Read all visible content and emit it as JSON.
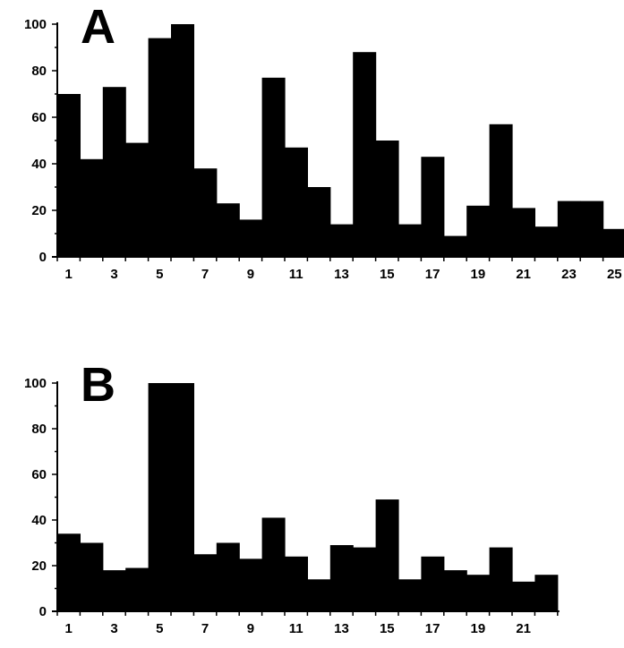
{
  "chart_data": [
    {
      "type": "bar",
      "panel_label": "A",
      "x": [
        1,
        2,
        3,
        4,
        5,
        6,
        7,
        8,
        9,
        10,
        11,
        12,
        13,
        14,
        15,
        16,
        17,
        18,
        19,
        20,
        21,
        22,
        23,
        24,
        25
      ],
      "values": [
        70,
        42,
        73,
        49,
        94,
        100,
        38,
        23,
        16,
        77,
        47,
        30,
        14,
        88,
        50,
        14,
        43,
        9,
        22,
        57,
        21,
        13,
        24,
        24,
        12
      ],
      "x_tick_labels": [
        "1",
        "3",
        "5",
        "7",
        "9",
        "11",
        "13",
        "15",
        "17",
        "19",
        "21",
        "23",
        "25"
      ],
      "y_ticks": [
        0,
        20,
        40,
        60,
        80,
        100
      ],
      "y_tick_labels": [
        "0",
        "20",
        "40",
        "60",
        "80",
        "100"
      ],
      "ylim": [
        0,
        100
      ],
      "grid": false,
      "color": "#000000"
    },
    {
      "type": "bar",
      "panel_label": "B",
      "x": [
        1,
        2,
        3,
        4,
        5,
        6,
        7,
        8,
        9,
        10,
        11,
        12,
        13,
        14,
        15,
        16,
        17,
        18,
        19,
        20,
        21,
        22
      ],
      "values": [
        34,
        30,
        18,
        19,
        100,
        100,
        25,
        30,
        23,
        41,
        24,
        14,
        29,
        28,
        49,
        14,
        24,
        18,
        16,
        28,
        13,
        16
      ],
      "x_tick_labels": [
        "1",
        "3",
        "5",
        "7",
        "9",
        "11",
        "13",
        "15",
        "17",
        "19",
        "21"
      ],
      "y_ticks": [
        0,
        20,
        40,
        60,
        80,
        100
      ],
      "y_tick_labels": [
        "0",
        "20",
        "40",
        "60",
        "80",
        "100"
      ],
      "ylim": [
        0,
        100
      ],
      "grid": false,
      "color": "#000000"
    }
  ]
}
